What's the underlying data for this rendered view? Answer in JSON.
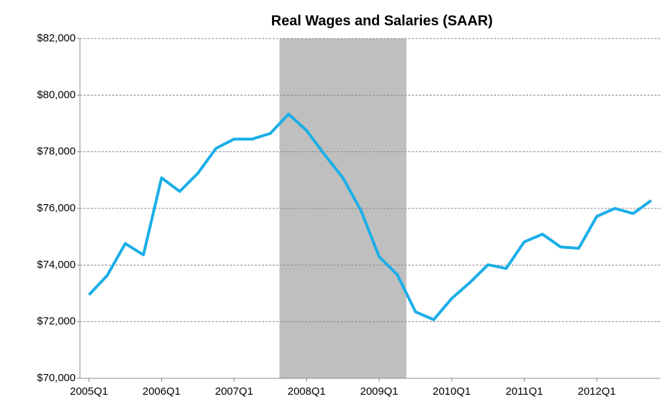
{
  "chart_data": {
    "type": "line",
    "title": "Real Wages and Salaries (SAAR)",
    "categories": [
      "2005Q1",
      null,
      null,
      null,
      "2006Q1",
      null,
      null,
      null,
      "2007Q1",
      null,
      null,
      null,
      "2008Q1",
      null,
      null,
      null,
      "2009Q1",
      null,
      null,
      null,
      "2010Q1",
      null,
      null,
      null,
      "2011Q1",
      null,
      null,
      null,
      "2012Q1",
      null,
      null,
      null
    ],
    "series": [
      {
        "name": "Real Wages and Salaries",
        "color": "#1aaee8",
        "values": [
          72950,
          73630,
          74760,
          74360,
          77080,
          76600,
          77240,
          78120,
          78450,
          78450,
          78650,
          79330,
          78750,
          77890,
          77080,
          75920,
          74290,
          73660,
          72350,
          72070,
          72820,
          73380,
          74010,
          73880,
          74820,
          75090,
          74640,
          74590,
          75720,
          76000,
          75820,
          76280
        ]
      }
    ],
    "shaded_range": {
      "start": 11,
      "end": 17,
      "color": "#bfbfbf"
    },
    "ylim": [
      70000,
      82000
    ],
    "yticks": [
      {
        "value": 70000,
        "label": "$70,000"
      },
      {
        "value": 72000,
        "label": "$72,000"
      },
      {
        "value": 74000,
        "label": "$74,000"
      },
      {
        "value": 76000,
        "label": "$76,000"
      },
      {
        "value": 78000,
        "label": "$78,000"
      },
      {
        "value": 80000,
        "label": "$80,000"
      },
      {
        "value": 82000,
        "label": "$82,000"
      }
    ],
    "grid": true
  }
}
